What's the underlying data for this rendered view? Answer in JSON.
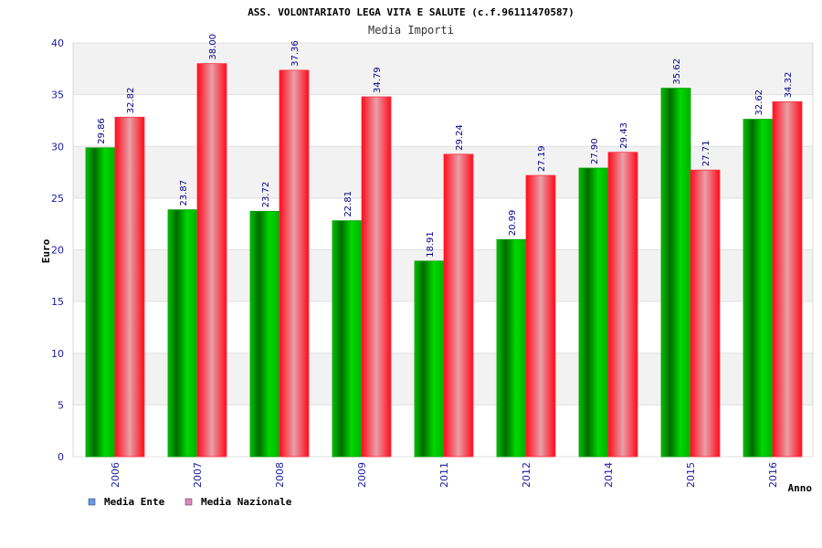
{
  "chart_data": {
    "type": "bar",
    "title": "ASS. VOLONTARIATO LEGA VITA E SALUTE (c.f.96111470587)",
    "subtitle": "Media Importi",
    "xlabel": "Anno",
    "ylabel": "Euro",
    "ylim": [
      0,
      40
    ],
    "yticks": [
      0,
      5,
      10,
      15,
      20,
      25,
      30,
      35,
      40
    ],
    "categories": [
      "2006",
      "2007",
      "2008",
      "2009",
      "2011",
      "2012",
      "2014",
      "2015",
      "2016"
    ],
    "series": [
      {
        "name": "Media Ente",
        "values": [
          29.86,
          23.87,
          23.72,
          22.81,
          18.91,
          20.99,
          27.9,
          35.62,
          32.62
        ],
        "labels": [
          "29.86",
          "23.87",
          "23.72",
          "22.81",
          "18.91",
          "20.99",
          "27.90",
          "35.62",
          "32.62"
        ],
        "color": "#00aa00",
        "legend_color": "#6699ee"
      },
      {
        "name": "Media Nazionale",
        "values": [
          32.82,
          38.0,
          37.36,
          34.79,
          29.24,
          27.19,
          29.43,
          27.71,
          34.32
        ],
        "labels": [
          "32.82",
          "38.00",
          "37.36",
          "34.79",
          "29.24",
          "27.19",
          "29.43",
          "27.71",
          "34.32"
        ],
        "color": "#ff1a2a",
        "legend_color": "#dd88bb"
      }
    ],
    "grid": true,
    "legend_position": "bottom-left"
  }
}
